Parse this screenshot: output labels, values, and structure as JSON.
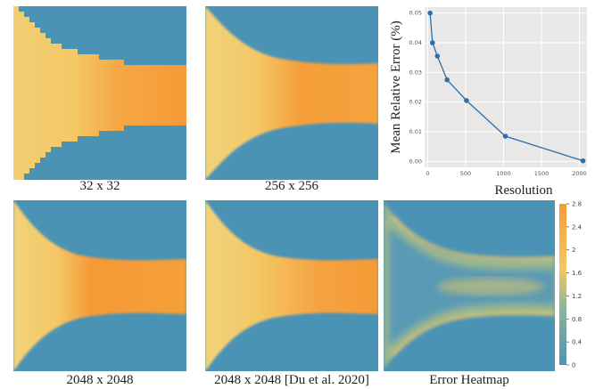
{
  "panels": [
    {
      "caption": "32 x 32",
      "kind": "blocky"
    },
    {
      "caption": "256 x 256",
      "kind": "smooth"
    },
    {
      "caption": "2048 x 2048",
      "kind": "smooth"
    },
    {
      "caption": "2048 x 2048 [Du et al. 2020]",
      "kind": "smooth-light"
    },
    {
      "caption": "Error Heatmap",
      "kind": "error"
    }
  ],
  "colors": {
    "blue": "#4b93b5",
    "yellow": "#f4c866",
    "orange": "#f59a35",
    "chart_bg": "#e8e8e8",
    "chart_line": "#2e6fa8"
  },
  "chart_data": [
    {
      "type": "line",
      "title": "",
      "xlabel": "Resolution",
      "ylabel": "Mean Relative Error (%)",
      "x": [
        32,
        64,
        128,
        256,
        512,
        1024,
        2048
      ],
      "y": [
        0.05,
        0.04,
        0.0355,
        0.0275,
        0.0205,
        0.0085,
        0.0002
      ],
      "xlim": [
        -40,
        2100
      ],
      "ylim": [
        -0.002,
        0.052
      ],
      "xticks": [
        0,
        500,
        1000,
        1500,
        2000
      ],
      "yticks": [
        0.0,
        0.01,
        0.02,
        0.03,
        0.04,
        0.05
      ],
      "ytick_labels": [
        "0.00",
        "0.01",
        "0.02",
        "0.03",
        "0.04",
        "0.05"
      ],
      "grid": true
    },
    {
      "type": "heatmap",
      "title": "Error Heatmap",
      "colorbar_ticks": [
        0,
        0.4,
        0.8,
        1.2,
        1.6,
        2,
        2.4,
        2.8
      ],
      "colorbar_tick_labels": [
        "0",
        "0.4",
        "0.8",
        "1.2",
        "1.6",
        "2",
        "2.4",
        "2.8"
      ],
      "colorbar_range": [
        0,
        2.8
      ]
    }
  ]
}
